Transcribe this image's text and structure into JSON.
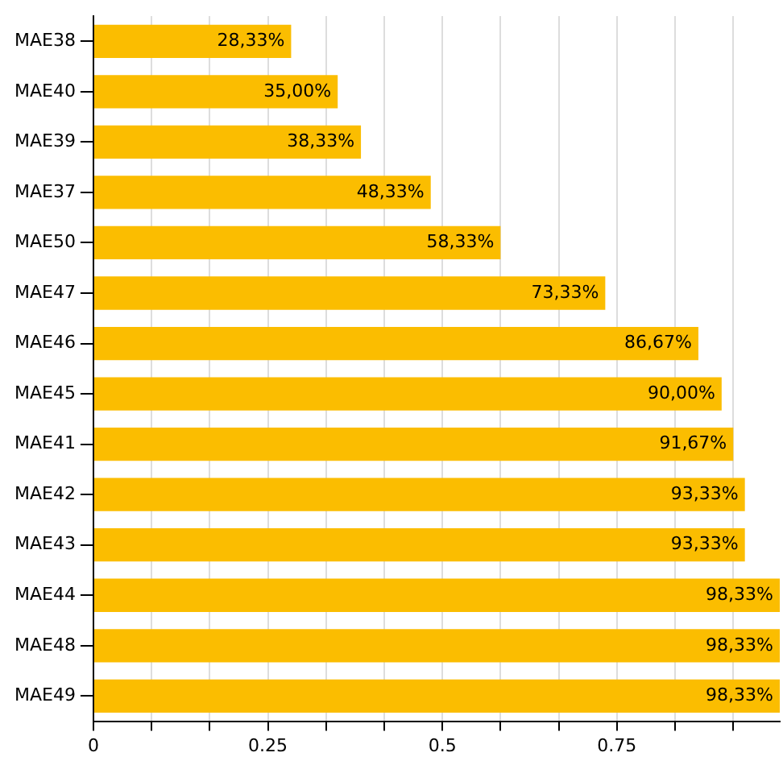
{
  "chart_data": {
    "type": "bar",
    "orientation": "horizontal",
    "categories": [
      "MAE38",
      "MAE40",
      "MAE39",
      "MAE37",
      "MAE50",
      "MAE47",
      "MAE46",
      "MAE45",
      "MAE41",
      "MAE42",
      "MAE43",
      "MAE44",
      "MAE48",
      "MAE49"
    ],
    "values": [
      0.2833,
      0.35,
      0.3833,
      0.4833,
      0.5833,
      0.7333,
      0.8667,
      0.9,
      0.9167,
      0.9333,
      0.9333,
      0.9833,
      0.9833,
      0.9833
    ],
    "value_labels": [
      "28,33%",
      "35,00%",
      "38,33%",
      "48,33%",
      "58,33%",
      "73,33%",
      "86,67%",
      "90,00%",
      "91,67%",
      "93,33%",
      "93,33%",
      "98,33%",
      "98,33%",
      "98,33%"
    ],
    "color": "#fbbd00",
    "xlim": [
      0,
      0.9833
    ],
    "xticks": [
      0,
      {
        "value": 0.0833,
        "label": null
      },
      {
        "value": 0.1667,
        "label": null
      },
      0.25,
      {
        "value": 0.3333,
        "label": null
      },
      {
        "value": 0.4167,
        "label": null
      },
      0.5,
      {
        "value": 0.5833,
        "label": null
      },
      {
        "value": 0.6667,
        "label": null
      },
      0.75,
      {
        "value": 0.8333,
        "label": null
      },
      {
        "value": 0.9167,
        "label": null
      }
    ],
    "grid": "x"
  }
}
